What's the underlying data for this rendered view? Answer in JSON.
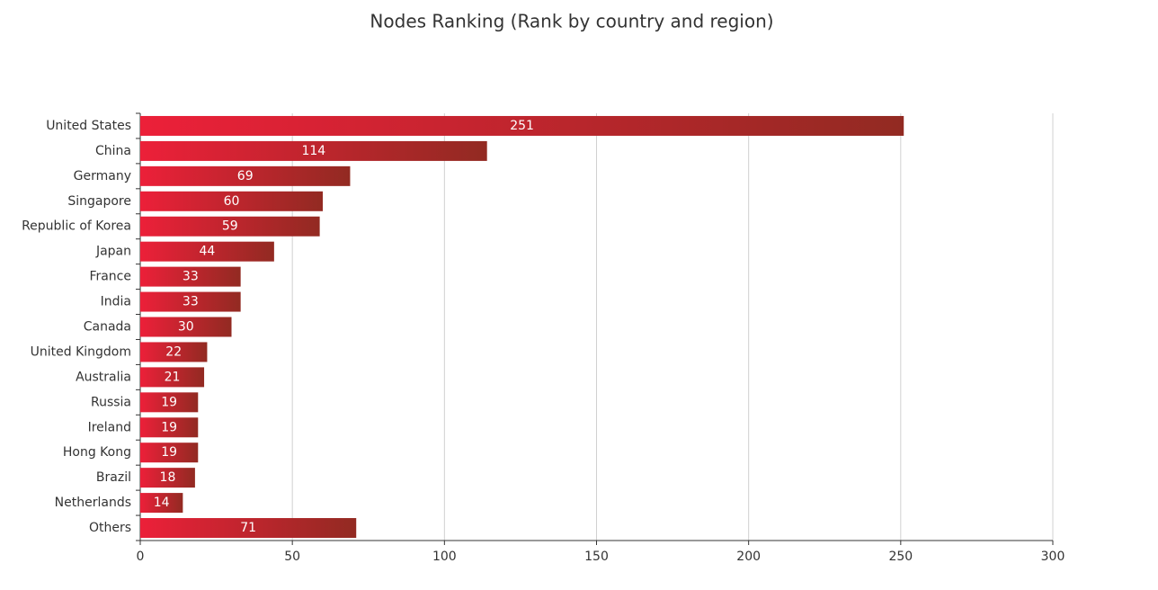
{
  "chart_data": {
    "type": "hbar",
    "title": "Nodes Ranking (Rank by country and region)",
    "categories": [
      "United States",
      "China",
      "Germany",
      "Singapore",
      "Republic of Korea",
      "Japan",
      "France",
      "India",
      "Canada",
      "United Kingdom",
      "Australia",
      "Russia",
      "Ireland",
      "Hong Kong",
      "Brazil",
      "Netherlands",
      "Others"
    ],
    "values": [
      251,
      114,
      69,
      60,
      59,
      44,
      33,
      33,
      30,
      22,
      21,
      19,
      19,
      19,
      18,
      14,
      71
    ],
    "color": [
      "#ec2039",
      "#922a22"
    ],
    "xlim": [
      0,
      300
    ],
    "xticks": [
      0,
      50,
      100,
      150,
      200,
      250,
      300
    ],
    "grid": true
  }
}
